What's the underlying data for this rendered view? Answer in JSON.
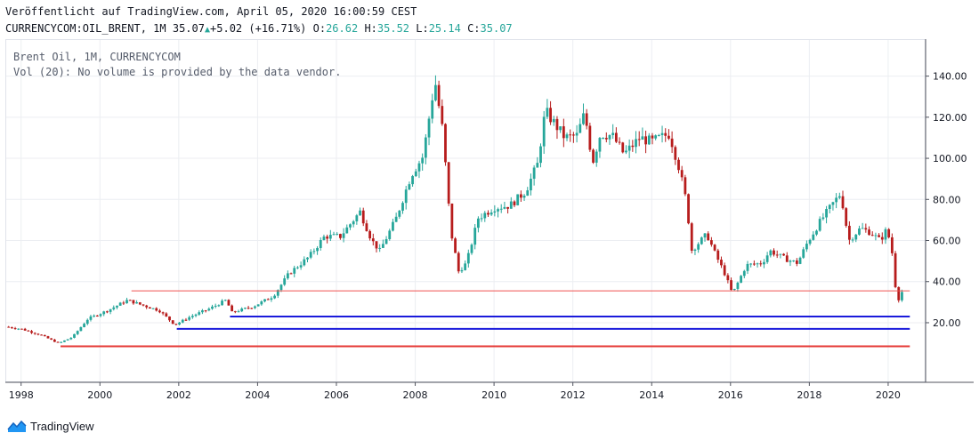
{
  "header": {
    "published": "Veröffentlicht auf TradingView.com, April 05, 2020 16:00:59 CEST",
    "symbol": "CURRENCYCOM:OIL_BRENT, 1M",
    "last": "35.07",
    "change": "+5.02 (+16.71%)",
    "o_label": "O:",
    "o_value": "26.62",
    "h_label": "H:",
    "h_value": "35.52",
    "l_label": "L:",
    "l_value": "25.14",
    "c_label": "C:",
    "c_value": "35.07"
  },
  "legend": {
    "line1": "Brent Oil, 1M, CURRENCYCOM",
    "line2": "Vol (20): No volume is provided by the data vendor."
  },
  "footer": {
    "brand": "TradingView"
  },
  "colors": {
    "up": "#26a69a",
    "down": "#b71c1c",
    "support_blue": "#1a1adb",
    "support_red": "#e53935",
    "resistance": "#ef5350",
    "grid": "#eceef2"
  },
  "chart_data": {
    "type": "candlestick",
    "x_ticks": [
      "1998",
      "2000",
      "2002",
      "2004",
      "2006",
      "2008",
      "2010",
      "2012",
      "2014",
      "2016",
      "2018",
      "2020"
    ],
    "y_ticks": [
      "20.00",
      "40.00",
      "60.00",
      "80.00",
      "100.00",
      "120.00",
      "140.00"
    ],
    "ylim": [
      -9,
      158
    ],
    "xlim": [
      1997.6,
      2020.95
    ],
    "last_price": 35.07,
    "grid": true,
    "horizontal_lines": [
      {
        "kind": "resistance",
        "color": "#ef5350",
        "start": 2000.8,
        "end": 2020.55,
        "price": 35.5
      },
      {
        "kind": "support",
        "color": "#1a1adb",
        "start": 2003.3,
        "end": 2020.55,
        "price": 23.0
      },
      {
        "kind": "support",
        "color": "#1a1adb",
        "start": 2001.95,
        "end": 2020.55,
        "price": 17.0
      },
      {
        "kind": "support",
        "color": "#e53935",
        "start": 1999.0,
        "end": 2020.55,
        "price": 8.5
      }
    ],
    "anchors": [
      [
        1997.6,
        18
      ],
      [
        1998.0,
        17
      ],
      [
        1998.5,
        14
      ],
      [
        1998.95,
        10
      ],
      [
        1999.3,
        13
      ],
      [
        1999.7,
        22
      ],
      [
        2000.2,
        26
      ],
      [
        2000.7,
        31
      ],
      [
        2001.0,
        29
      ],
      [
        2001.5,
        26
      ],
      [
        2001.9,
        19
      ],
      [
        2002.3,
        23
      ],
      [
        2002.8,
        27
      ],
      [
        2003.2,
        31
      ],
      [
        2003.35,
        25
      ],
      [
        2003.9,
        28
      ],
      [
        2004.4,
        33
      ],
      [
        2004.8,
        44
      ],
      [
        2005.3,
        52
      ],
      [
        2005.7,
        62
      ],
      [
        2006.1,
        62
      ],
      [
        2006.6,
        74
      ],
      [
        2006.9,
        60
      ],
      [
        2007.1,
        55
      ],
      [
        2007.5,
        70
      ],
      [
        2007.9,
        92
      ],
      [
        2008.2,
        101
      ],
      [
        2008.5,
        138
      ],
      [
        2008.7,
        113
      ],
      [
        2008.9,
        65
      ],
      [
        2009.1,
        45
      ],
      [
        2009.3,
        49
      ],
      [
        2009.6,
        71
      ],
      [
        2010.0,
        76
      ],
      [
        2010.4,
        77
      ],
      [
        2010.8,
        84
      ],
      [
        2011.1,
        97
      ],
      [
        2011.3,
        123
      ],
      [
        2011.8,
        110
      ],
      [
        2012.1,
        111
      ],
      [
        2012.3,
        122
      ],
      [
        2012.5,
        98
      ],
      [
        2012.7,
        112
      ],
      [
        2013.0,
        111
      ],
      [
        2013.3,
        102
      ],
      [
        2013.7,
        110
      ],
      [
        2014.0,
        108
      ],
      [
        2014.45,
        112
      ],
      [
        2014.7,
        95
      ],
      [
        2014.9,
        77
      ],
      [
        2015.0,
        55
      ],
      [
        2015.4,
        63
      ],
      [
        2015.6,
        54
      ],
      [
        2015.85,
        44
      ],
      [
        2016.05,
        34
      ],
      [
        2016.4,
        48
      ],
      [
        2016.8,
        49
      ],
      [
        2017.0,
        55
      ],
      [
        2017.4,
        51
      ],
      [
        2017.7,
        49
      ],
      [
        2017.95,
        59
      ],
      [
        2018.3,
        70
      ],
      [
        2018.6,
        78
      ],
      [
        2018.8,
        83
      ],
      [
        2019.0,
        60
      ],
      [
        2019.3,
        66
      ],
      [
        2019.55,
        64
      ],
      [
        2019.8,
        60
      ],
      [
        2019.95,
        65
      ],
      [
        2020.05,
        60
      ],
      [
        2020.15,
        48
      ],
      [
        2020.22,
        27
      ],
      [
        2020.3,
        35
      ]
    ]
  }
}
